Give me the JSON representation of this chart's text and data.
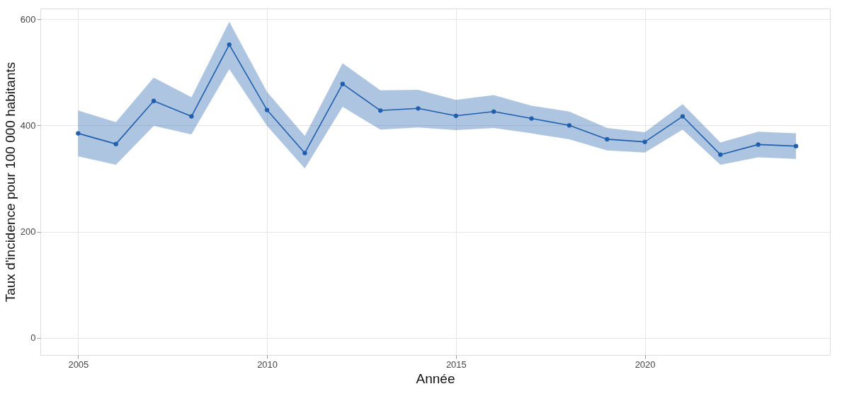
{
  "chart_data": {
    "type": "line",
    "xlabel": "Année",
    "ylabel": "Taux d'incidence pour 100 000 habitants",
    "x": [
      2005,
      2006,
      2007,
      2008,
      2009,
      2010,
      2011,
      2012,
      2013,
      2014,
      2015,
      2016,
      2017,
      2018,
      2019,
      2020,
      2021,
      2022,
      2023,
      2024
    ],
    "series": [
      {
        "color": "#1f5fad",
        "values": [
          385,
          365,
          446,
          417,
          552,
          429,
          348,
          478,
          428,
          432,
          418,
          426,
          413,
          400,
          374,
          369,
          417,
          345,
          364,
          361
        ],
        "lower": [
          342,
          326,
          399,
          383,
          506,
          399,
          319,
          435,
          392,
          396,
          391,
          395,
          385,
          374,
          353,
          349,
          392,
          326,
          340,
          337
        ],
        "upper": [
          428,
          406,
          490,
          453,
          595,
          463,
          380,
          517,
          466,
          467,
          448,
          457,
          437,
          426,
          395,
          387,
          440,
          368,
          388,
          385
        ]
      }
    ],
    "xlim": [
      2004,
      2024.9
    ],
    "xticks": [
      2005,
      2010,
      2015,
      2020
    ],
    "ylim": [
      -32,
      620
    ],
    "yticks": [
      0,
      200,
      400,
      600
    ],
    "grid": true,
    "marker": "circle",
    "line_style": "solid"
  }
}
